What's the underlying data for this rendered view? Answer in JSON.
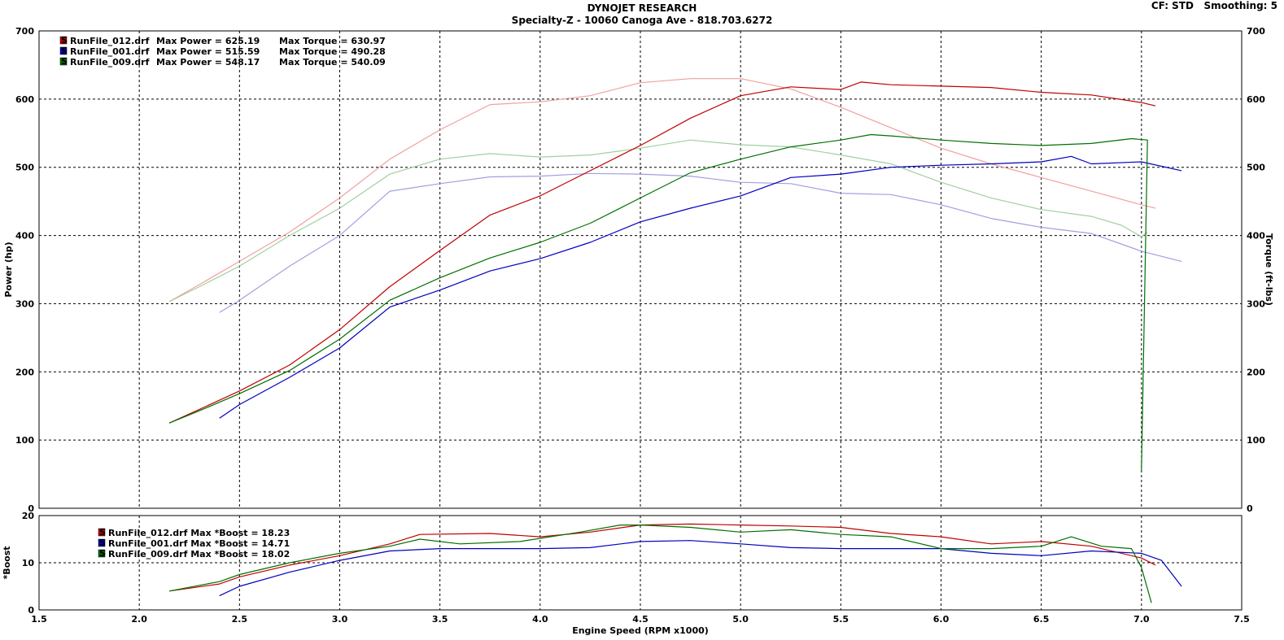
{
  "header": {
    "title": "DYNOJET RESEARCH",
    "subtitle": "Specialty-Z - 10060 Canoga Ave - 818.703.6272",
    "info": "CF: STD   Smoothing: 5"
  },
  "colors": {
    "run_012": "#c00000",
    "run_001": "#0000c0",
    "run_009": "#007000",
    "run_012_torque": "#f0a0a0",
    "run_001_torque": "#a0a0e0",
    "run_009_torque": "#a0d0a0"
  },
  "chart_data": [
    {
      "type": "line",
      "ylabel": "Power (hp)",
      "y2label": "Torque (ft-lbs)",
      "ylim": [
        0,
        700
      ],
      "y2lim": [
        0,
        700
      ],
      "xlim": [
        1.5,
        7.5
      ],
      "yticks": [
        "0",
        "100",
        "200",
        "300",
        "400",
        "500",
        "600",
        "700"
      ],
      "y2ticks": [
        "0",
        "100",
        "200",
        "300",
        "400",
        "500",
        "600",
        "700"
      ],
      "grid": true,
      "legend_position": "top-left",
      "legend": [
        {
          "marker": "S",
          "file": "RunFile_012.drf",
          "power": "Max Power = 625.19",
          "torque": "Max Torque = 630.97"
        },
        {
          "marker": "S",
          "file": "RunFile_001.drf",
          "power": "Max Power = 515.59",
          "torque": "Max Torque = 490.28"
        },
        {
          "marker": "S",
          "file": "RunFile_009.drf",
          "power": "Max Power = 548.17",
          "torque": "Max Torque = 540.09"
        }
      ],
      "series": [
        {
          "kind": "power",
          "run": "012",
          "x": [
            2.15,
            2.3,
            2.5,
            2.75,
            3.0,
            3.25,
            3.5,
            3.75,
            4.0,
            4.25,
            4.5,
            4.75,
            5.0,
            5.25,
            5.5,
            5.6,
            5.75,
            6.0,
            6.25,
            6.5,
            6.75,
            7.0,
            7.07
          ],
          "y": [
            125,
            145,
            172,
            210,
            262,
            325,
            378,
            430,
            458,
            495,
            532,
            572,
            605,
            618,
            614,
            625,
            621,
            619,
            617,
            610,
            606,
            595,
            590
          ]
        },
        {
          "kind": "torque",
          "run": "012",
          "x": [
            2.15,
            2.3,
            2.5,
            2.75,
            3.0,
            3.25,
            3.5,
            3.75,
            4.0,
            4.25,
            4.5,
            4.75,
            5.0,
            5.25,
            5.5,
            5.75,
            6.0,
            6.25,
            6.5,
            6.75,
            7.0,
            7.07
          ],
          "y": [
            303,
            328,
            362,
            405,
            455,
            512,
            555,
            592,
            596,
            605,
            624,
            630,
            630,
            615,
            588,
            558,
            528,
            505,
            485,
            465,
            445,
            440
          ]
        },
        {
          "kind": "power",
          "run": "001",
          "x": [
            2.4,
            2.5,
            2.75,
            3.0,
            3.25,
            3.5,
            3.75,
            4.0,
            4.25,
            4.5,
            4.75,
            5.0,
            5.25,
            5.5,
            5.75,
            6.0,
            6.25,
            6.5,
            6.65,
            6.75,
            7.0,
            7.2
          ],
          "y": [
            132,
            152,
            192,
            235,
            295,
            320,
            348,
            366,
            390,
            420,
            440,
            458,
            485,
            490,
            500,
            503,
            505,
            508,
            516,
            505,
            508,
            495
          ]
        },
        {
          "kind": "torque",
          "run": "001",
          "x": [
            2.4,
            2.5,
            2.75,
            3.0,
            3.25,
            3.5,
            3.75,
            4.0,
            4.25,
            4.5,
            4.75,
            5.0,
            5.25,
            5.5,
            5.75,
            6.0,
            6.25,
            6.5,
            6.75,
            7.0,
            7.2
          ],
          "y": [
            287,
            305,
            355,
            400,
            465,
            476,
            486,
            487,
            491,
            490,
            487,
            478,
            476,
            462,
            460,
            445,
            425,
            412,
            403,
            377,
            362
          ]
        },
        {
          "kind": "power",
          "run": "009",
          "x": [
            2.15,
            2.3,
            2.5,
            2.75,
            3.0,
            3.25,
            3.5,
            3.75,
            4.0,
            4.25,
            4.5,
            4.75,
            5.0,
            5.25,
            5.5,
            5.65,
            5.75,
            6.0,
            6.25,
            6.5,
            6.75,
            6.95,
            7.03,
            7.0
          ],
          "y": [
            125,
            143,
            168,
            202,
            248,
            305,
            338,
            367,
            390,
            418,
            455,
            492,
            512,
            530,
            540,
            548,
            546,
            540,
            535,
            532,
            535,
            542,
            540,
            55
          ]
        },
        {
          "kind": "torque",
          "run": "009",
          "x": [
            2.15,
            2.3,
            2.5,
            2.75,
            3.0,
            3.25,
            3.5,
            3.75,
            4.0,
            4.25,
            4.5,
            4.75,
            5.0,
            5.25,
            5.5,
            5.75,
            6.0,
            6.25,
            6.5,
            6.75,
            6.9,
            7.0,
            7.03
          ],
          "y": [
            303,
            325,
            355,
            400,
            440,
            490,
            512,
            520,
            515,
            518,
            528,
            540,
            533,
            530,
            518,
            505,
            478,
            455,
            438,
            428,
            415,
            398,
            405
          ]
        }
      ]
    },
    {
      "type": "line",
      "ylabel": "*Boost",
      "xlabel": "Engine Speed (RPM x1000)",
      "ylim": [
        0,
        20
      ],
      "xlim": [
        1.5,
        7.5
      ],
      "xticks": [
        "1.5",
        "2.0",
        "2.5",
        "3.0",
        "3.5",
        "4.0",
        "4.5",
        "5.0",
        "5.5",
        "6.0",
        "6.5",
        "7.0",
        "7.5"
      ],
      "yticks": [
        "0",
        "10",
        "20"
      ],
      "grid": true,
      "legend_position": "top-left",
      "legend": [
        {
          "marker": "S",
          "text": "RunFile_012.drf Max *Boost = 18.23"
        },
        {
          "marker": "S",
          "text": "RunFile_001.drf Max *Boost = 14.71"
        },
        {
          "marker": "S",
          "text": "RunFile_009.drf Max *Boost = 18.02"
        }
      ],
      "series": [
        {
          "run": "012",
          "x": [
            2.15,
            2.4,
            2.5,
            2.75,
            3.0,
            3.25,
            3.4,
            3.75,
            4.0,
            4.25,
            4.5,
            4.75,
            5.0,
            5.25,
            5.5,
            5.75,
            6.0,
            6.25,
            6.5,
            6.75,
            7.0,
            7.07
          ],
          "y": [
            4.0,
            5.5,
            7.0,
            9.5,
            11.5,
            14.0,
            16.0,
            16.2,
            15.5,
            16.5,
            18.0,
            18.2,
            18.0,
            17.8,
            17.5,
            16.2,
            15.5,
            14.0,
            14.5,
            13.5,
            11.0,
            9.5
          ]
        },
        {
          "run": "001",
          "x": [
            2.4,
            2.5,
            2.75,
            3.0,
            3.25,
            3.5,
            3.75,
            4.0,
            4.25,
            4.5,
            4.75,
            5.0,
            5.25,
            5.5,
            5.75,
            6.0,
            6.25,
            6.5,
            6.75,
            7.0,
            7.1,
            7.2
          ],
          "y": [
            3.0,
            5.0,
            8.0,
            10.5,
            12.5,
            13.0,
            13.0,
            13.0,
            13.2,
            14.5,
            14.7,
            14.0,
            13.2,
            13.0,
            13.0,
            13.0,
            12.0,
            11.5,
            12.5,
            12.0,
            10.5,
            5.0
          ]
        },
        {
          "run": "009",
          "x": [
            2.15,
            2.4,
            2.5,
            2.75,
            3.0,
            3.25,
            3.4,
            3.6,
            3.9,
            4.2,
            4.4,
            4.5,
            4.75,
            5.0,
            5.25,
            5.5,
            5.75,
            6.0,
            6.25,
            6.5,
            6.65,
            6.8,
            6.95,
            7.0,
            7.05
          ],
          "y": [
            4.0,
            6.0,
            7.5,
            10.0,
            12.0,
            13.5,
            15.0,
            14.0,
            14.5,
            16.5,
            18.0,
            18.0,
            17.5,
            16.5,
            17.0,
            16.0,
            15.5,
            13.0,
            13.0,
            13.5,
            15.5,
            13.5,
            13.0,
            9.0,
            1.5
          ]
        }
      ]
    }
  ]
}
